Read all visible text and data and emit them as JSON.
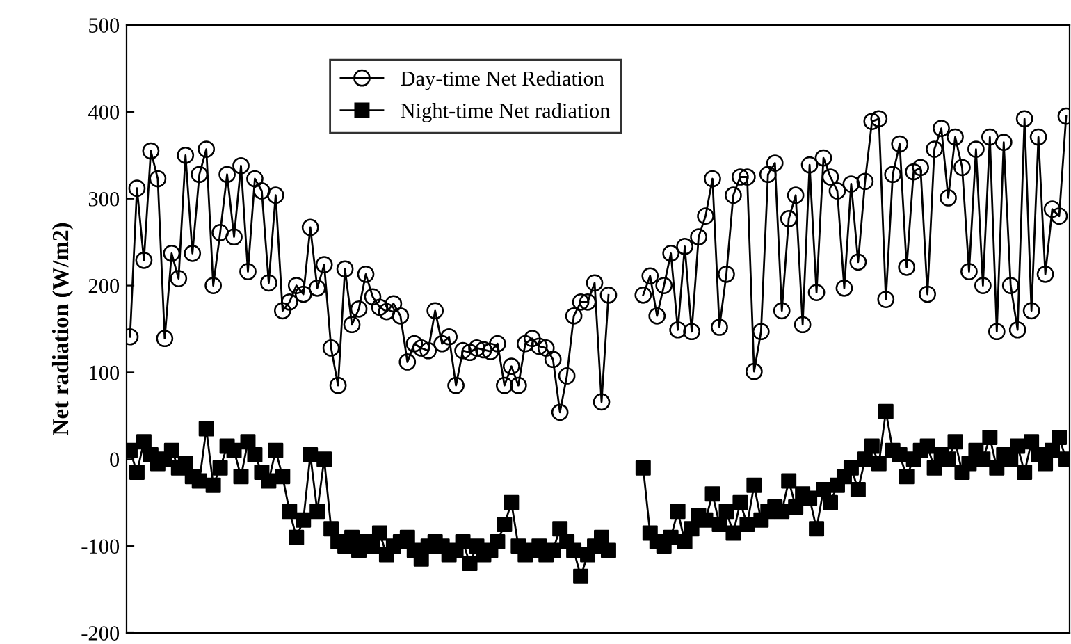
{
  "chart_data": {
    "type": "line",
    "ylabel": "Net radiation (W/m2)",
    "categories": [
      null,
      null,
      null,
      null,
      null,
      null,
      null,
      null,
      null,
      null,
      null,
      null,
      null,
      null,
      null,
      null,
      null,
      null,
      null,
      null,
      null,
      null,
      null,
      null,
      null,
      null,
      null,
      null,
      null,
      null,
      null,
      null,
      null,
      null,
      null,
      null,
      null,
      null,
      null,
      null,
      null,
      null,
      null,
      null,
      null,
      null,
      null,
      null,
      null,
      null,
      null,
      null,
      null,
      null,
      null,
      null,
      null,
      null,
      null,
      null,
      null,
      null,
      null,
      null,
      null,
      null,
      null,
      null,
      null,
      null,
      null,
      null,
      null,
      null,
      null,
      null,
      null,
      null,
      null,
      null,
      null,
      null,
      null,
      null,
      null,
      null,
      null,
      null,
      null,
      null,
      null,
      null,
      null,
      null,
      null,
      null,
      null,
      null,
      null,
      null,
      null,
      null,
      null,
      null,
      null,
      null,
      null,
      null,
      null,
      null,
      null,
      null,
      null,
      null,
      null,
      null,
      null,
      null,
      null,
      null,
      null,
      null,
      null,
      null,
      null,
      null,
      null,
      null,
      null,
      null,
      null,
      null,
      null,
      null,
      null,
      null
    ],
    "series": [
      {
        "name": "Day-time Net Rediation",
        "color": "#000000",
        "marker": "circle",
        "values": [
          141,
          312,
          229,
          355,
          323,
          139,
          237,
          208,
          350,
          237,
          328,
          357,
          200,
          261,
          328,
          256,
          338,
          216,
          323,
          309,
          203,
          304,
          171,
          181,
          200,
          190,
          267,
          197,
          224,
          128,
          85,
          219,
          155,
          173,
          213,
          187,
          175,
          170,
          179,
          165,
          112,
          133,
          128,
          125,
          171,
          133,
          141,
          85,
          125,
          123,
          128,
          126,
          124,
          133,
          85,
          107,
          85,
          133,
          139,
          130,
          128,
          115,
          54,
          96,
          165,
          181,
          181,
          203,
          66,
          189,
          null,
          null,
          null,
          null,
          null,
          null,
          null,
          null,
          null,
          null,
          null,
          null,
          null,
          null,
          null,
          null,
          null,
          null,
          null,
          null,
          null,
          null,
          null,
          null,
          null,
          null,
          null,
          null,
          null,
          null,
          null,
          null,
          null,
          null,
          null,
          null,
          null,
          null,
          null,
          null,
          null,
          null,
          null,
          null,
          null,
          null,
          null,
          null,
          null,
          null,
          null,
          null,
          null,
          null,
          null,
          null,
          null,
          null,
          null,
          null,
          null,
          null,
          null,
          null,
          null,
          null
        ]
      },
      {
        "name": "Night-time Net radiation",
        "color": "#000000",
        "marker": "square",
        "values": [
          10,
          -15,
          20,
          5,
          -5,
          0,
          10,
          -10,
          -5,
          -20,
          -25,
          35,
          -30,
          -10,
          15,
          10,
          -20,
          20,
          5,
          -15,
          -25,
          10,
          -20,
          -60,
          -90,
          -70,
          5,
          -60,
          0,
          -80,
          -95,
          -100,
          -90,
          -105,
          -95,
          -100,
          -85,
          -110,
          -100,
          -95,
          -90,
          -105,
          -115,
          -100,
          -95,
          -100,
          -110,
          -105,
          -95,
          -120,
          -100,
          -110,
          -105,
          -95,
          -75,
          -50,
          -100,
          -110,
          -105,
          -100,
          -110,
          -105,
          -80,
          -95,
          -105,
          -135,
          -110,
          -100,
          -90,
          -105,
          null,
          null,
          null,
          null,
          null,
          null,
          null,
          null,
          null,
          null,
          null,
          null,
          null,
          null,
          null,
          null,
          null,
          null,
          null,
          null,
          null,
          null,
          null,
          null,
          null,
          null,
          null,
          null,
          null,
          null,
          null,
          null,
          null,
          null,
          null,
          null,
          null,
          null,
          null,
          null,
          null,
          null,
          null,
          null,
          null,
          null,
          null,
          null,
          null,
          null,
          null,
          null,
          null,
          null,
          null,
          null,
          null,
          null,
          null,
          null,
          null,
          null,
          null,
          null,
          null,
          null
        ]
      },
      {
        "color": "#000000",
        "marker": "circle",
        "values": [
          null,
          null,
          null,
          null,
          null,
          null,
          null,
          null,
          null,
          null,
          null,
          null,
          null,
          null,
          null,
          null,
          null,
          null,
          null,
          null,
          null,
          null,
          null,
          null,
          null,
          null,
          null,
          null,
          null,
          null,
          null,
          null,
          null,
          null,
          null,
          null,
          null,
          null,
          null,
          null,
          null,
          null,
          null,
          null,
          null,
          null,
          null,
          null,
          null,
          null,
          null,
          null,
          null,
          null,
          null,
          null,
          null,
          null,
          null,
          null,
          null,
          null,
          null,
          null,
          null,
          null,
          null,
          null,
          null,
          null,
          null,
          null,
          null,
          null,
          189,
          211,
          165,
          200,
          237,
          149,
          245,
          147,
          256,
          280,
          323,
          152,
          213,
          304,
          325,
          325,
          101,
          147,
          328,
          341,
          171,
          277,
          304,
          155,
          339,
          192,
          347,
          325,
          309,
          197,
          317,
          227,
          320,
          389,
          392,
          184,
          328,
          363,
          221,
          331,
          336,
          190,
          357,
          381,
          301,
          371,
          336,
          216,
          357,
          200,
          371,
          147,
          365,
          200,
          149,
          392,
          171,
          371,
          213,
          288,
          280,
          395
        ]
      },
      {
        "color": "#000000",
        "marker": "square",
        "values": [
          null,
          null,
          null,
          null,
          null,
          null,
          null,
          null,
          null,
          null,
          null,
          null,
          null,
          null,
          null,
          null,
          null,
          null,
          null,
          null,
          null,
          null,
          null,
          null,
          null,
          null,
          null,
          null,
          null,
          null,
          null,
          null,
          null,
          null,
          null,
          null,
          null,
          null,
          null,
          null,
          null,
          null,
          null,
          null,
          null,
          null,
          null,
          null,
          null,
          null,
          null,
          null,
          null,
          null,
          null,
          null,
          null,
          null,
          null,
          null,
          null,
          null,
          null,
          null,
          null,
          null,
          null,
          null,
          null,
          null,
          null,
          null,
          null,
          null,
          -10,
          -85,
          -95,
          -100,
          -90,
          -60,
          -95,
          -80,
          -65,
          -70,
          -40,
          -75,
          -60,
          -85,
          -50,
          -75,
          -30,
          -70,
          -60,
          -55,
          -60,
          -25,
          -55,
          -40,
          -45,
          -80,
          -35,
          -50,
          -30,
          -20,
          -10,
          -35,
          0,
          15,
          -5,
          55,
          10,
          5,
          -20,
          0,
          10,
          15,
          -10,
          5,
          0,
          20,
          -15,
          -5,
          10,
          0,
          25,
          -10,
          5,
          0,
          15,
          -15,
          20,
          5,
          -5,
          10,
          25,
          0
        ]
      }
    ],
    "ylim": [
      -200,
      500
    ],
    "yticks": [
      -200,
      -100,
      0,
      100,
      200,
      300,
      400,
      500
    ],
    "grid": false,
    "legend": "top",
    "tick_labels": "y",
    "line_style": "solid"
  }
}
